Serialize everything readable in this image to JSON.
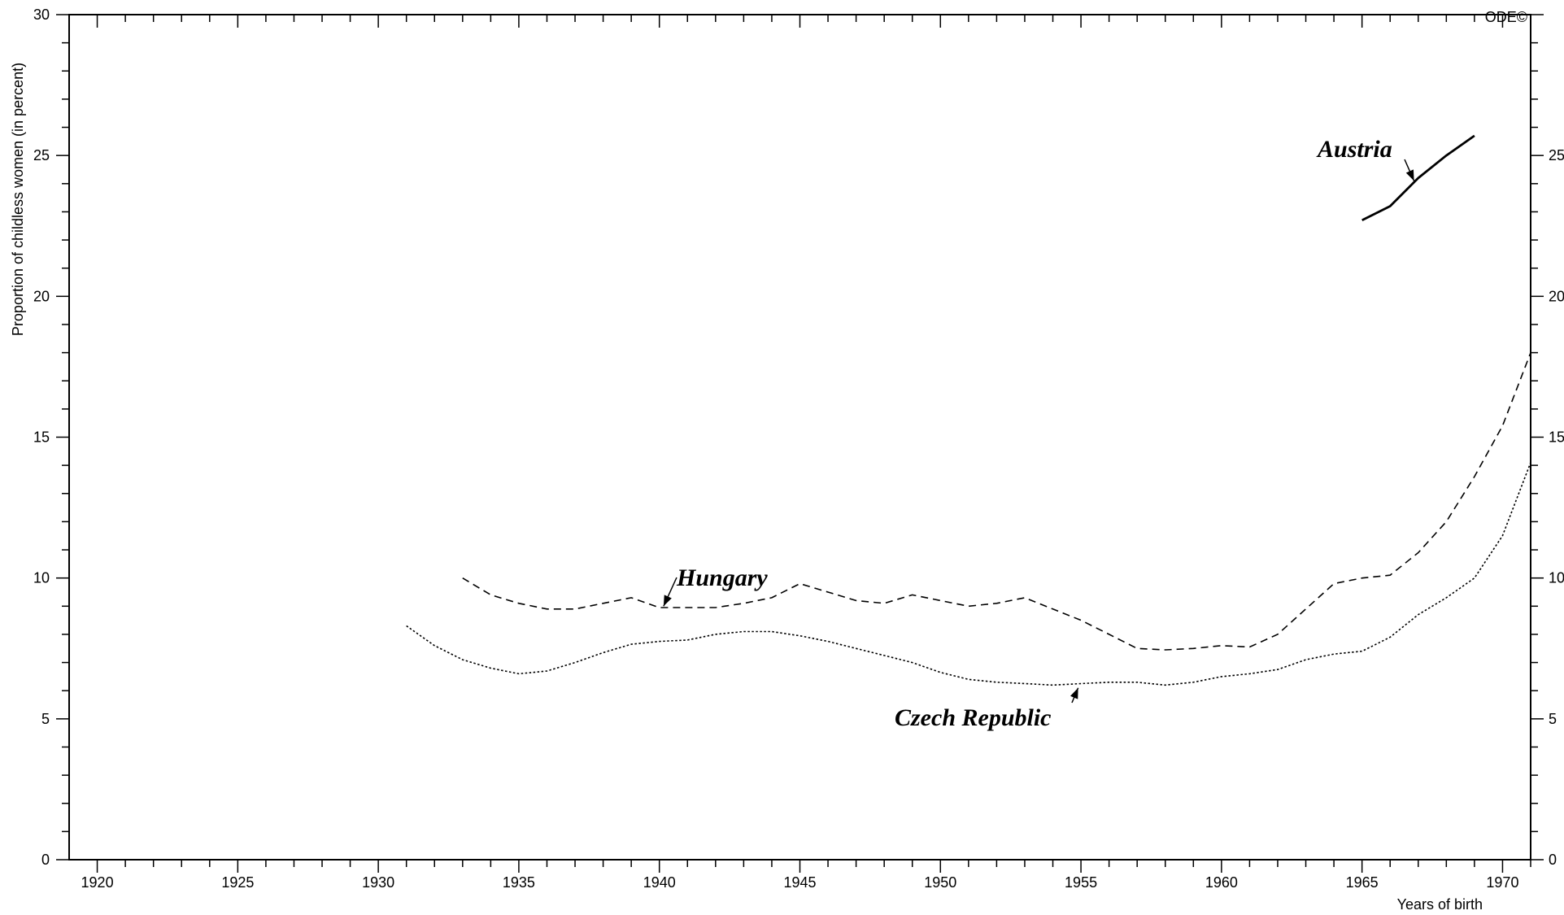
{
  "chart_data": {
    "type": "line",
    "title": "",
    "xlabel": "Years of birth",
    "ylabel": "Proportion of childless women (in percent)",
    "watermark": "ODE©",
    "xlim": [
      1919,
      1971
    ],
    "ylim": [
      0,
      30
    ],
    "x_ticks": [
      1920,
      1925,
      1930,
      1935,
      1940,
      1945,
      1950,
      1955,
      1960,
      1965,
      1970
    ],
    "y_ticks": [
      0,
      5,
      10,
      15,
      20,
      25,
      30
    ],
    "y_ticks_right": [
      0,
      5,
      10,
      15,
      20,
      25
    ],
    "grid": false,
    "series": [
      {
        "name": "Austria",
        "style": "solid",
        "color": "#000000",
        "x": [
          1965,
          1966,
          1967,
          1968,
          1969
        ],
        "y": [
          22.7,
          23.2,
          24.2,
          25.0,
          25.7
        ]
      },
      {
        "name": "Hungary",
        "style": "dashed",
        "color": "#000000",
        "x": [
          1933,
          1934,
          1935,
          1936,
          1937,
          1938,
          1939,
          1940,
          1941,
          1942,
          1943,
          1944,
          1945,
          1946,
          1947,
          1948,
          1949,
          1950,
          1951,
          1952,
          1953,
          1954,
          1955,
          1956,
          1957,
          1958,
          1959,
          1960,
          1961,
          1962,
          1963,
          1964,
          1965,
          1966,
          1967,
          1968,
          1969,
          1970,
          1971
        ],
        "y": [
          10.0,
          9.4,
          9.1,
          8.9,
          8.9,
          9.1,
          9.3,
          8.95,
          8.95,
          8.95,
          9.1,
          9.3,
          9.8,
          9.5,
          9.2,
          9.1,
          9.4,
          9.2,
          9.0,
          9.1,
          9.3,
          8.9,
          8.5,
          8.0,
          7.5,
          7.45,
          7.5,
          7.6,
          7.55,
          8.0,
          8.9,
          9.8,
          10.0,
          10.1,
          10.9,
          12.0,
          13.6,
          15.4,
          18.0
        ]
      },
      {
        "name": "Czech Republic",
        "style": "dotted",
        "color": "#000000",
        "x": [
          1931,
          1932,
          1933,
          1934,
          1935,
          1936,
          1937,
          1938,
          1939,
          1940,
          1941,
          1942,
          1943,
          1944,
          1945,
          1946,
          1947,
          1948,
          1949,
          1950,
          1951,
          1952,
          1953,
          1954,
          1955,
          1956,
          1957,
          1958,
          1959,
          1960,
          1961,
          1962,
          1963,
          1964,
          1965,
          1966,
          1967,
          1968,
          1969,
          1970,
          1971
        ],
        "y": [
          8.3,
          7.6,
          7.1,
          6.8,
          6.6,
          6.7,
          7.0,
          7.35,
          7.65,
          7.75,
          7.8,
          8.0,
          8.1,
          8.1,
          7.95,
          7.75,
          7.5,
          7.25,
          7.0,
          6.65,
          6.4,
          6.3,
          6.25,
          6.2,
          6.25,
          6.3,
          6.3,
          6.2,
          6.3,
          6.5,
          6.6,
          6.75,
          7.1,
          7.3,
          7.4,
          7.9,
          8.7,
          9.3,
          10.0,
          11.5,
          14.1
        ]
      }
    ],
    "annotations": [
      {
        "text": "Austria",
        "series": "Austria"
      },
      {
        "text": "Hungary",
        "series": "Hungary"
      },
      {
        "text": "Czech Republic",
        "series": "Czech Republic"
      }
    ]
  }
}
